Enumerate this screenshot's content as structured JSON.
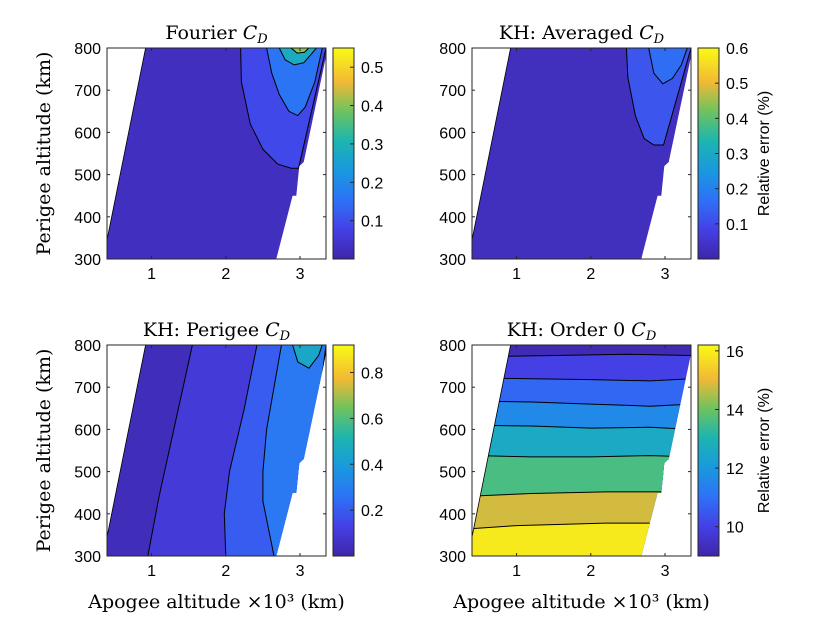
{
  "chart_data": [
    {
      "type": "contour",
      "title_prefix": "Fourier ",
      "title_symbol": "C",
      "title_subscript": "D",
      "xlabel": "",
      "ylabel": "Perigee altitude (km)",
      "xlim": [
        0.4,
        3.35
      ],
      "ylim": [
        300,
        800
      ],
      "xticks": [
        1,
        2,
        3
      ],
      "yticks": [
        300,
        400,
        500,
        600,
        700,
        800
      ],
      "colorbar_ticks": [
        "0.1",
        "0.2",
        "0.3",
        "0.4",
        "0.5"
      ],
      "colorbar_tick_values": [
        0.1,
        0.2,
        0.3,
        0.4,
        0.5
      ],
      "colorbar_range": [
        0.0,
        0.55
      ],
      "colorbar_label": "",
      "base_level": 0.03,
      "bands": [
        {
          "level": 0.09,
          "outline": [
            [
              2.2,
              800
            ],
            [
              2.21,
              720
            ],
            [
              2.33,
              620
            ],
            [
              2.5,
              560
            ],
            [
              2.7,
              525
            ],
            [
              2.88,
              515
            ],
            [
              2.98,
              515
            ],
            [
              3.35,
              800
            ]
          ]
        },
        {
          "level": 0.16,
          "outline": [
            [
              2.55,
              800
            ],
            [
              2.62,
              740
            ],
            [
              2.72,
              690
            ],
            [
              2.85,
              650
            ],
            [
              2.97,
              640
            ],
            [
              3.07,
              660
            ],
            [
              3.2,
              720
            ],
            [
              3.3,
              800
            ]
          ]
        },
        {
          "level": 0.28,
          "outline": [
            [
              2.72,
              800
            ],
            [
              2.8,
              772
            ],
            [
              2.92,
              760
            ],
            [
              3.05,
              765
            ],
            [
              3.15,
              785
            ],
            [
              3.22,
              800
            ]
          ]
        },
        {
          "level": 0.4,
          "outline": [
            [
              2.88,
              800
            ],
            [
              2.96,
              788
            ],
            [
              3.06,
              790
            ],
            [
              3.12,
              800
            ]
          ]
        }
      ]
    },
    {
      "type": "contour",
      "title_prefix": "KH: Averaged ",
      "title_symbol": "C",
      "title_subscript": "D",
      "xlabel": "",
      "ylabel": "",
      "xlim": [
        0.4,
        3.35
      ],
      "ylim": [
        300,
        800
      ],
      "xticks": [
        1,
        2,
        3
      ],
      "yticks": [
        300,
        400,
        500,
        600,
        700,
        800
      ],
      "colorbar_ticks": [
        "0.1",
        "0.2",
        "0.3",
        "0.4",
        "0.5",
        "0.6"
      ],
      "colorbar_tick_values": [
        0.1,
        0.2,
        0.3,
        0.4,
        0.5,
        0.6
      ],
      "colorbar_range": [
        0.0,
        0.6
      ],
      "colorbar_label": "Relative error (%)",
      "base_level": 0.03,
      "bands": [
        {
          "level": 0.12,
          "outline": [
            [
              2.48,
              800
            ],
            [
              2.5,
              730
            ],
            [
              2.6,
              640
            ],
            [
              2.72,
              585
            ],
            [
              2.85,
              570
            ],
            [
              2.98,
              570
            ],
            [
              3.35,
              800
            ]
          ]
        },
        {
          "level": 0.16,
          "outline": [
            [
              2.78,
              800
            ],
            [
              2.85,
              740
            ],
            [
              2.97,
              715
            ],
            [
              3.1,
              728
            ],
            [
              3.22,
              760
            ],
            [
              3.3,
              800
            ]
          ]
        }
      ]
    },
    {
      "type": "contour",
      "title_prefix": "KH: Perigee ",
      "title_symbol": "C",
      "title_subscript": "D",
      "xlabel": "Apogee altitude ×10³ (km)",
      "ylabel": "Perigee altitude (km)",
      "xlim": [
        0.4,
        3.35
      ],
      "ylim": [
        300,
        800
      ],
      "xticks": [
        1,
        2,
        3
      ],
      "yticks": [
        300,
        400,
        500,
        600,
        700,
        800
      ],
      "colorbar_ticks": [
        "0.2",
        "0.4",
        "0.6",
        "0.8"
      ],
      "colorbar_tick_values": [
        0.2,
        0.4,
        0.6,
        0.8
      ],
      "colorbar_range": [
        0.0,
        0.92
      ],
      "colorbar_label": "",
      "base_level": 0.04,
      "bands": [
        {
          "level": 0.1,
          "outline": [
            [
              0.95,
              300
            ],
            [
              1.1,
              440
            ],
            [
              1.3,
              600
            ],
            [
              1.55,
              800
            ],
            [
              3.35,
              800
            ],
            [
              2.99,
              300
            ]
          ]
        },
        {
          "level": 0.2,
          "outline": [
            [
              2.0,
              300
            ],
            [
              1.98,
              400
            ],
            [
              2.05,
              500
            ],
            [
              2.25,
              650
            ],
            [
              2.42,
              800
            ],
            [
              3.35,
              800
            ],
            [
              2.99,
              300
            ]
          ]
        },
        {
          "level": 0.28,
          "outline": [
            [
              2.65,
              300
            ],
            [
              2.5,
              430
            ],
            [
              2.5,
              500
            ],
            [
              2.55,
              600
            ],
            [
              2.65,
              700
            ],
            [
              2.75,
              800
            ],
            [
              3.35,
              800
            ],
            [
              2.99,
              300
            ]
          ]
        },
        {
          "level": 0.45,
          "outline": [
            [
              2.9,
              800
            ],
            [
              2.97,
              760
            ],
            [
              3.12,
              745
            ],
            [
              3.25,
              775
            ],
            [
              3.3,
              800
            ]
          ]
        }
      ]
    },
    {
      "type": "contour",
      "title_prefix": "KH: Order 0 ",
      "title_symbol": "C",
      "title_subscript": "D",
      "xlabel": "Apogee altitude ×10³ (km)",
      "ylabel": "",
      "xlim": [
        0.4,
        3.35
      ],
      "ylim": [
        300,
        800
      ],
      "xticks": [
        1,
        2,
        3
      ],
      "yticks": [
        300,
        400,
        500,
        600,
        700,
        800
      ],
      "colorbar_ticks": [
        "10",
        "12",
        "14",
        "16"
      ],
      "colorbar_tick_values": [
        10,
        12,
        14,
        16
      ],
      "colorbar_range": [
        9.0,
        16.2
      ],
      "colorbar_label": "Relative error (%)",
      "base_level": 9.2,
      "bands": [
        {
          "level": 10.0,
          "outline": [
            [
              0.4,
              300
            ],
            [
              3.35,
              300
            ],
            [
              3.35,
              775
            ],
            [
              2.5,
              778
            ],
            [
              1.5,
              775
            ],
            [
              0.4,
              772
            ]
          ]
        },
        {
          "level": 10.8,
          "outline": [
            [
              0.4,
              300
            ],
            [
              3.35,
              300
            ],
            [
              3.35,
              720
            ],
            [
              2.8,
              715
            ],
            [
              2.0,
              718
            ],
            [
              1.2,
              720
            ],
            [
              0.4,
              722
            ]
          ]
        },
        {
          "level": 11.6,
          "outline": [
            [
              0.4,
              300
            ],
            [
              3.35,
              300
            ],
            [
              3.35,
              660
            ],
            [
              2.8,
              655
            ],
            [
              2.0,
              660
            ],
            [
              1.2,
              665
            ],
            [
              0.4,
              667
            ]
          ]
        },
        {
          "level": 12.6,
          "outline": [
            [
              0.4,
              300
            ],
            [
              3.35,
              300
            ],
            [
              3.35,
              600
            ],
            [
              2.8,
              605
            ],
            [
              2.0,
              603
            ],
            [
              1.2,
              608
            ],
            [
              0.4,
              610
            ]
          ]
        },
        {
          "level": 13.6,
          "outline": [
            [
              0.4,
              300
            ],
            [
              3.35,
              300
            ],
            [
              3.35,
              535
            ],
            [
              2.8,
              538
            ],
            [
              2.0,
              535
            ],
            [
              1.2,
              535
            ],
            [
              0.4,
              538
            ]
          ]
        },
        {
          "level": 14.8,
          "outline": [
            [
              0.4,
              300
            ],
            [
              3.35,
              300
            ],
            [
              3.35,
              452
            ],
            [
              2.2,
              452
            ],
            [
              1.2,
              448
            ],
            [
              0.4,
              442
            ]
          ]
        },
        {
          "level": 15.9,
          "outline": [
            [
              0.4,
              300
            ],
            [
              3.35,
              300
            ],
            [
              3.35,
              378
            ],
            [
              2.2,
              378
            ],
            [
              1.0,
              372
            ],
            [
              0.4,
              365
            ]
          ]
        }
      ]
    }
  ]
}
